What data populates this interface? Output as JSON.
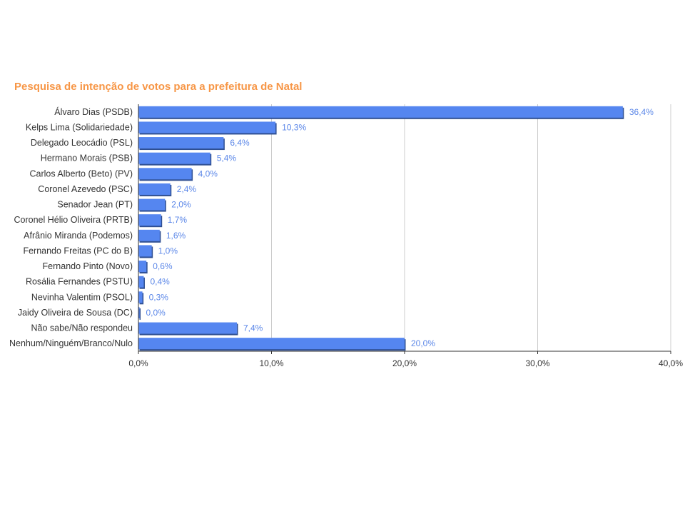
{
  "colors": {
    "title": "#f79646",
    "bar": "#5586f0",
    "bar_shadow": "#2f4f92",
    "value_label": "#5b87e8",
    "grid": "#cccccc",
    "axis": "#333333"
  },
  "chart_data": {
    "type": "bar",
    "orientation": "horizontal",
    "title": "Pesquisa de intenção de votos para a prefeitura de Natal",
    "xlabel": "",
    "ylabel": "",
    "xlim": [
      0,
      40
    ],
    "grid": true,
    "legend": "none",
    "x_ticks": [
      "0,0%",
      "10,0%",
      "20,0%",
      "30,0%",
      "40,0%"
    ],
    "x_tick_values": [
      0,
      10,
      20,
      30,
      40
    ],
    "categories": [
      "Álvaro Dias (PSDB)",
      "Kelps Lima (Solidariedade)",
      "Delegado Leocádio (PSL)",
      "Hermano Morais (PSB)",
      "Carlos Alberto (Beto) (PV)",
      "Coronel Azevedo (PSC)",
      "Senador Jean (PT)",
      "Coronel Hélio Oliveira (PRTB)",
      "Afrânio Miranda (Podemos)",
      "Fernando Freitas (PC do B)",
      "Fernando Pinto (Novo)",
      "Rosália Fernandes (PSTU)",
      "Nevinha Valentim (PSOL)",
      "Jaidy Oliveira de Sousa (DC)",
      "Não sabe/Não respondeu",
      "Nenhum/Ninguém/Branco/Nulo"
    ],
    "values": [
      36.4,
      10.3,
      6.4,
      5.4,
      4.0,
      2.4,
      2.0,
      1.7,
      1.6,
      1.0,
      0.6,
      0.4,
      0.3,
      0.0,
      7.4,
      20.0
    ],
    "value_labels": [
      "36,4%",
      "10,3%",
      "6,4%",
      "5,4%",
      "4,0%",
      "2,4%",
      "2,0%",
      "1,7%",
      "1,6%",
      "1,0%",
      "0,6%",
      "0,4%",
      "0,3%",
      "0,0%",
      "7,4%",
      "20,0%"
    ]
  }
}
